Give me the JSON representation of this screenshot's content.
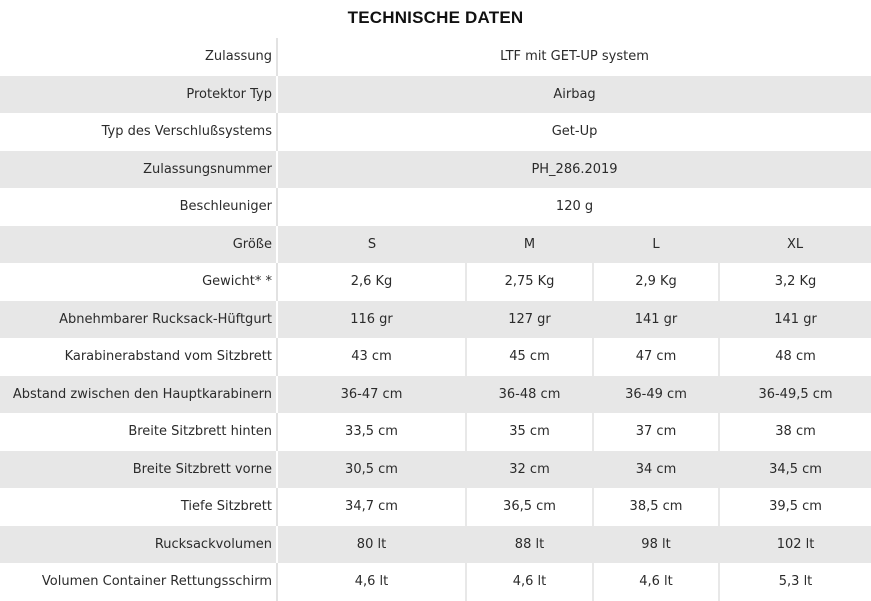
{
  "title": "TECHNISCHE DATEN",
  "single_rows": [
    {
      "label": "Zulassung",
      "value": "LTF mit GET-UP system"
    },
    {
      "label": "Protektor Typ",
      "value": "Airbag"
    },
    {
      "label": "Typ des Verschlußsystems",
      "value": "Get-Up"
    },
    {
      "label": "Zulassungsnummer",
      "value": "PH_286.2019"
    },
    {
      "label": "Beschleuniger",
      "value": "120 g"
    }
  ],
  "size_header": {
    "label": "Größe",
    "sizes": [
      "S",
      "M",
      "L",
      "XL"
    ]
  },
  "size_rows": [
    {
      "label": "Gewicht* *",
      "values": [
        "2,6 Kg",
        "2,75 Kg",
        "2,9 Kg",
        "3,2 Kg"
      ]
    },
    {
      "label": "Abnehmbarer Rucksack-Hüftgurt",
      "values": [
        "116 gr",
        "127 gr",
        "141 gr",
        "141 gr"
      ]
    },
    {
      "label": "Karabinerabstand vom Sitzbrett",
      "values": [
        "43 cm",
        "45 cm",
        "47 cm",
        "48 cm"
      ]
    },
    {
      "label": "Abstand zwischen den Hauptkarabinern",
      "values": [
        "36-47 cm",
        "36-48 cm",
        "36-49 cm",
        "36-49,5 cm"
      ]
    },
    {
      "label": "Breite Sitzbrett hinten",
      "values": [
        "33,5 cm",
        "35 cm",
        "37 cm",
        "38 cm"
      ]
    },
    {
      "label": "Breite Sitzbrett vorne",
      "values": [
        "30,5 cm",
        "32 cm",
        "34 cm",
        "34,5 cm"
      ]
    },
    {
      "label": "Tiefe Sitzbrett",
      "values": [
        "34,7 cm",
        "36,5 cm",
        "38,5 cm",
        "39,5 cm"
      ]
    },
    {
      "label": "Rucksackvolumen",
      "values": [
        "80 lt",
        "88 lt",
        "98 lt",
        "102 lt"
      ]
    },
    {
      "label": "Volumen Container Rettungsschirm",
      "values": [
        "4,6 lt",
        "4,6 lt",
        "4,6 lt",
        "5,3 lt"
      ]
    }
  ],
  "colors": {
    "row_shade": "#e7e7e7",
    "row_plain": "#ffffff",
    "text": "#2b2b2b",
    "title": "#111111"
  }
}
